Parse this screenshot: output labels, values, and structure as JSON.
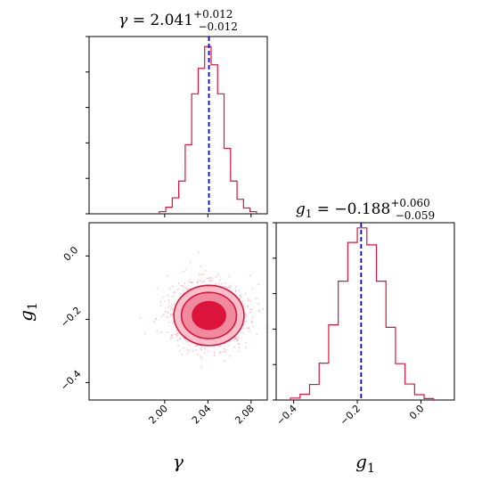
{
  "chart_data": [
    {
      "type": "histogram",
      "panel": "gamma-marginal",
      "title": {
        "symbol": "γ",
        "median": "2.041",
        "plus": "+0.012",
        "minus": "−0.012"
      },
      "median": 2.041,
      "xlim": [
        1.93,
        2.095
      ],
      "bin_edges": [
        1.995,
        2.001,
        2.007,
        2.013,
        2.019,
        2.025,
        2.031,
        2.037,
        2.043,
        2.049,
        2.055,
        2.061,
        2.067,
        2.073,
        2.079,
        2.085
      ],
      "counts": [
        0.3,
        0.9,
        2.2,
        4.5,
        9.5,
        16.5,
        20.0,
        23.0,
        20.5,
        16.5,
        9.0,
        4.5,
        2.0,
        0.8,
        0.3
      ],
      "color": "#dc143c",
      "median_line_color": "#0000cc"
    },
    {
      "type": "histogram",
      "panel": "g1-marginal",
      "title": {
        "symbol": "g",
        "subscript": "1",
        "median": "−0.188",
        "plus": "+0.060",
        "minus": "−0.059"
      },
      "median": -0.188,
      "xlim": [
        -0.455,
        0.105
      ],
      "xticks": [
        "−0.4",
        "−0.2",
        "0.0"
      ],
      "xtick_values": [
        -0.4,
        -0.2,
        0.0
      ],
      "bin_edges": [
        -0.41,
        -0.38,
        -0.35,
        -0.32,
        -0.29,
        -0.26,
        -0.23,
        -0.2,
        -0.17,
        -0.14,
        -0.11,
        -0.08,
        -0.05,
        -0.02,
        0.01,
        0.04
      ],
      "counts": [
        0.4,
        1.2,
        3.2,
        7.6,
        15.5,
        24.5,
        32.5,
        35.5,
        32.0,
        24.5,
        15.0,
        7.5,
        3.3,
        1.1,
        0.3
      ],
      "color": "#dc143c",
      "median_line_color": "#0000cc"
    },
    {
      "type": "contour",
      "panel": "joint",
      "xlabel": "γ",
      "ylabel": "g1",
      "xlim": [
        1.93,
        2.095
      ],
      "ylim": [
        -0.455,
        0.105
      ],
      "xticks": [
        "2.00",
        "2.04",
        "2.08"
      ],
      "xtick_values": [
        2.0,
        2.04,
        2.08
      ],
      "yticks": [
        "0.0",
        "−0.2",
        "−0.4"
      ],
      "ytick_values": [
        0.0,
        -0.2,
        -0.4
      ],
      "center": [
        2.041,
        -0.188
      ],
      "levels": [
        {
          "dx": 0.0325,
          "dy": 0.095,
          "fill": "#f9c0cc"
        },
        {
          "dx": 0.0255,
          "dy": 0.073,
          "fill": "#ef8a9f"
        },
        {
          "dx": 0.016,
          "dy": 0.046,
          "fill": "#dc143c"
        }
      ],
      "outline_color": "#dc143c",
      "points_color": "#f2a2b2"
    }
  ],
  "labels": {
    "xlabel_gamma": "γ",
    "xlabel_g1": "g",
    "xlabel_g1_sub": "1",
    "ylabel_g1": "g",
    "ylabel_g1_sub": "1"
  }
}
